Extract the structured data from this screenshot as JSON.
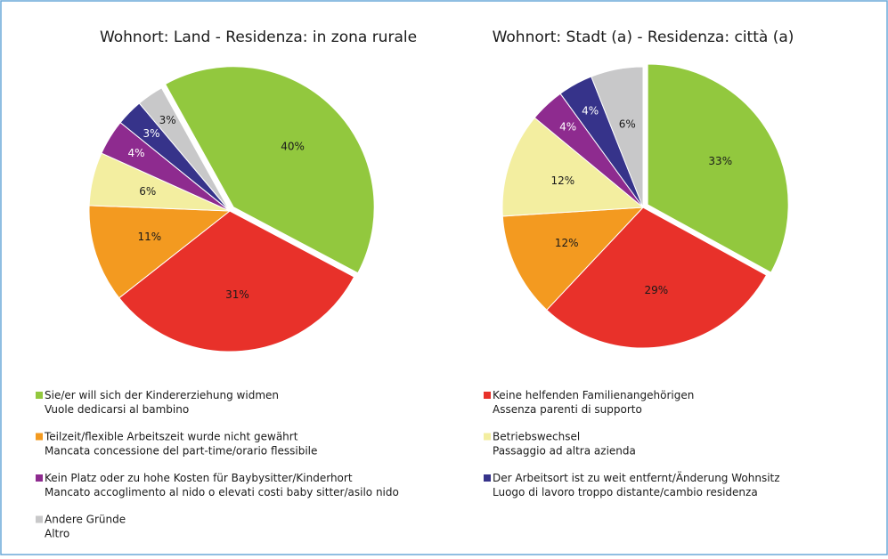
{
  "chart_data": [
    {
      "type": "pie",
      "title": "Wohnort: Land - Residenza: in zona rurale",
      "values": [
        40,
        31,
        11,
        6,
        4,
        3,
        3
      ],
      "value_labels": [
        "40%",
        "31%",
        "11%",
        "6%",
        "4%",
        "3%",
        "3%"
      ]
    },
    {
      "type": "pie",
      "title": "Wohnort: Stadt (a) - Residenza: città (a)",
      "values": [
        33,
        29,
        12,
        12,
        4,
        4,
        6
      ],
      "value_labels": [
        "33%",
        "29%",
        "12%",
        "12%",
        "4%",
        "4%",
        "6%"
      ]
    }
  ],
  "legend": [
    {
      "color": "#92c83e",
      "lines": [
        "Sie/er will sich der Kindererziehung widmen",
        "Vuole dedicarsi al bambino"
      ]
    },
    {
      "color": "#e8312a",
      "lines": [
        "Keine helfenden Familienangehörigen",
        "Assenza parenti di supporto"
      ]
    },
    {
      "color": "#f39a20",
      "lines": [
        "Teilzeit/flexible Arbeitszeit wurde nicht gewährt",
        "Mancata concessione del part-time/orario flessibile"
      ]
    },
    {
      "color": "#f3eea0",
      "lines": [
        "Betriebswechsel",
        "Passaggio ad altra azienda"
      ]
    },
    {
      "color": "#8e2b8f",
      "lines": [
        "Kein Platz oder zu hohe Kosten für Baybysitter/Kinderhort",
        "Mancato accoglimento al nido o elevati costi baby sitter/asilo nido"
      ]
    },
    {
      "color": "#36338a",
      "lines": [
        "Der Arbeitsort ist zu weit entfernt/Änderung Wohnsitz",
        "Luogo di lavoro troppo distante/cambio residenza"
      ]
    },
    {
      "color": "#c8c8c9",
      "lines": [
        "Andere Gründe",
        "Altro"
      ]
    }
  ]
}
